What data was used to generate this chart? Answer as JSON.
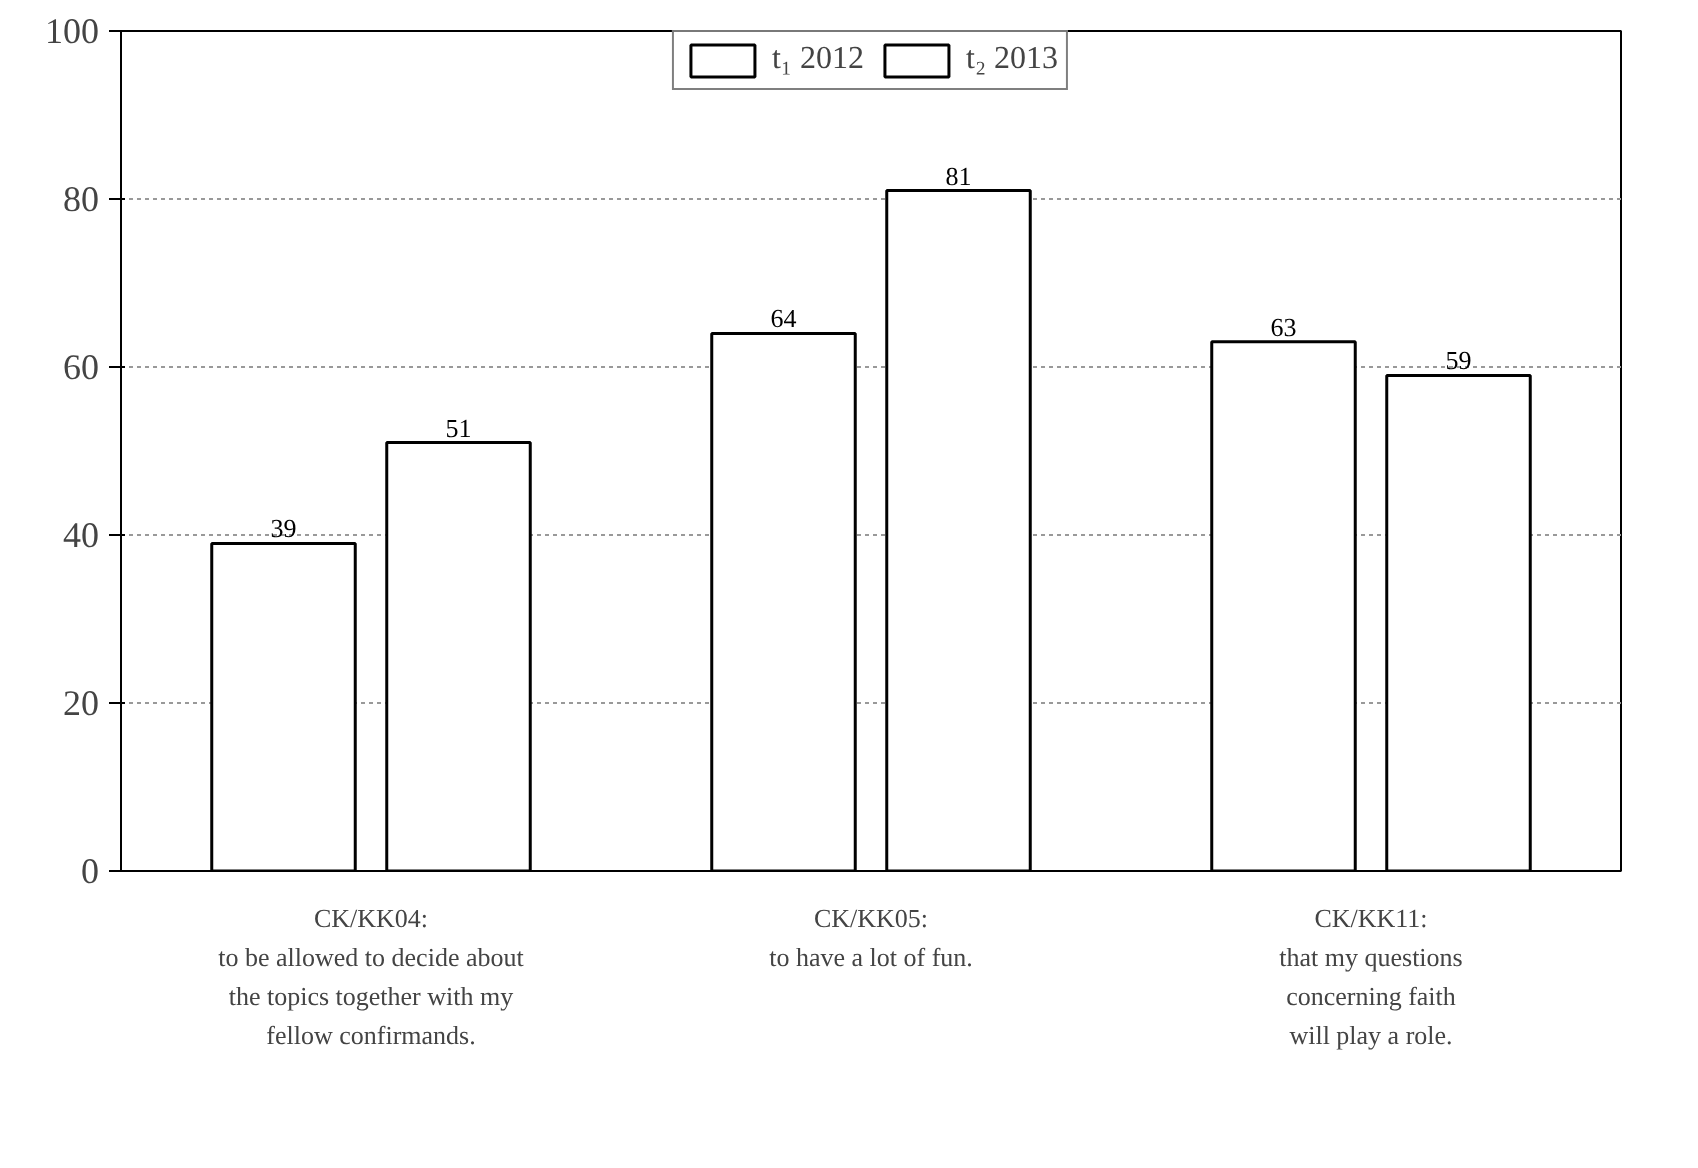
{
  "chart_data": {
    "type": "bar",
    "categories": [
      "CK/KK04:\nto be allowed to decide about\nthe topics together with my\nfellow confirmands.",
      "CK/KK05:\nto have a lot of fun.",
      "CK/KK11:\nthat my questions\nconcerning faith\nwill play a role."
    ],
    "series": [
      {
        "name": "t₁ 2012",
        "color": "#ffffff",
        "values": [
          39,
          64,
          63
        ]
      },
      {
        "name": "t₂ 2013",
        "color": "#ffffff",
        "values": [
          51,
          81,
          59
        ]
      }
    ],
    "ylim": [
      0,
      100
    ],
    "yticks": [
      0,
      20,
      40,
      60,
      80,
      100
    ],
    "grid": "y",
    "legend": "top",
    "data_labels": true
  }
}
